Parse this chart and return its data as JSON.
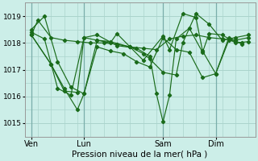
{
  "xlabel": "Pression niveau de la mer( hPa )",
  "bg_color": "#cceee8",
  "grid_color": "#aad4cc",
  "line_color": "#1a6b1a",
  "ylim": [
    1014.5,
    1019.5
  ],
  "yticks": [
    1015,
    1016,
    1017,
    1018,
    1019
  ],
  "xtick_labels": [
    "Ven",
    "Lun",
    "Sam",
    "Dim"
  ],
  "xtick_positions": [
    1,
    9,
    21,
    29
  ],
  "vline_positions": [
    1,
    9,
    21,
    29
  ],
  "xlim": [
    0,
    35
  ],
  "series": [
    {
      "x": [
        1,
        2,
        4,
        6,
        8,
        10,
        12,
        14,
        16,
        18,
        20,
        22,
        24,
        26,
        28,
        30,
        32,
        34
      ],
      "y": [
        1018.3,
        1018.85,
        1018.2,
        1018.1,
        1018.05,
        1018.0,
        1018.0,
        1017.95,
        1017.85,
        1017.8,
        1017.75,
        1018.15,
        1018.25,
        1018.3,
        1018.2,
        1018.15,
        1018.1,
        1018.2
      ]
    },
    {
      "x": [
        1,
        3,
        5,
        7,
        9,
        11,
        13,
        16,
        18,
        19,
        21,
        23,
        24,
        26,
        28,
        30,
        32,
        34
      ],
      "y": [
        1018.5,
        1019.0,
        1017.3,
        1016.35,
        1016.1,
        1018.1,
        1018.05,
        1017.85,
        1017.6,
        1017.4,
        1016.9,
        1016.8,
        1018.0,
        1019.1,
        1018.7,
        1018.1,
        1018.2,
        1018.3
      ]
    },
    {
      "x": [
        1,
        3,
        5,
        7,
        9,
        11,
        14,
        17,
        19,
        20,
        21,
        22,
        23,
        25,
        27,
        28,
        30,
        32,
        34
      ],
      "y": [
        1018.4,
        1018.15,
        1016.3,
        1016.05,
        1018.2,
        1018.3,
        1017.9,
        1017.8,
        1017.5,
        1016.1,
        1015.05,
        1016.05,
        1018.15,
        1018.55,
        1017.65,
        1018.35,
        1018.3,
        1018.0,
        1018.05
      ]
    },
    {
      "x": [
        1,
        4,
        6,
        8,
        9,
        11,
        13,
        14,
        16,
        18,
        21,
        22,
        24,
        26,
        27,
        29,
        31,
        33
      ],
      "y": [
        1018.3,
        1017.2,
        1016.2,
        1016.15,
        1018.2,
        1018.1,
        1018.0,
        1018.35,
        1017.85,
        1017.35,
        1018.25,
        1017.75,
        1019.1,
        1018.95,
        1017.7,
        1016.85,
        1018.1,
        1018.0
      ]
    },
    {
      "x": [
        1,
        4,
        6,
        8,
        9,
        11,
        13,
        15,
        17,
        19,
        21,
        23,
        25,
        27,
        29,
        31,
        33
      ],
      "y": [
        1018.3,
        1017.2,
        1016.3,
        1015.5,
        1016.1,
        1017.85,
        1017.7,
        1017.6,
        1017.3,
        1017.1,
        1018.2,
        1017.75,
        1017.65,
        1016.7,
        1016.85,
        1018.2,
        1017.95
      ]
    }
  ]
}
